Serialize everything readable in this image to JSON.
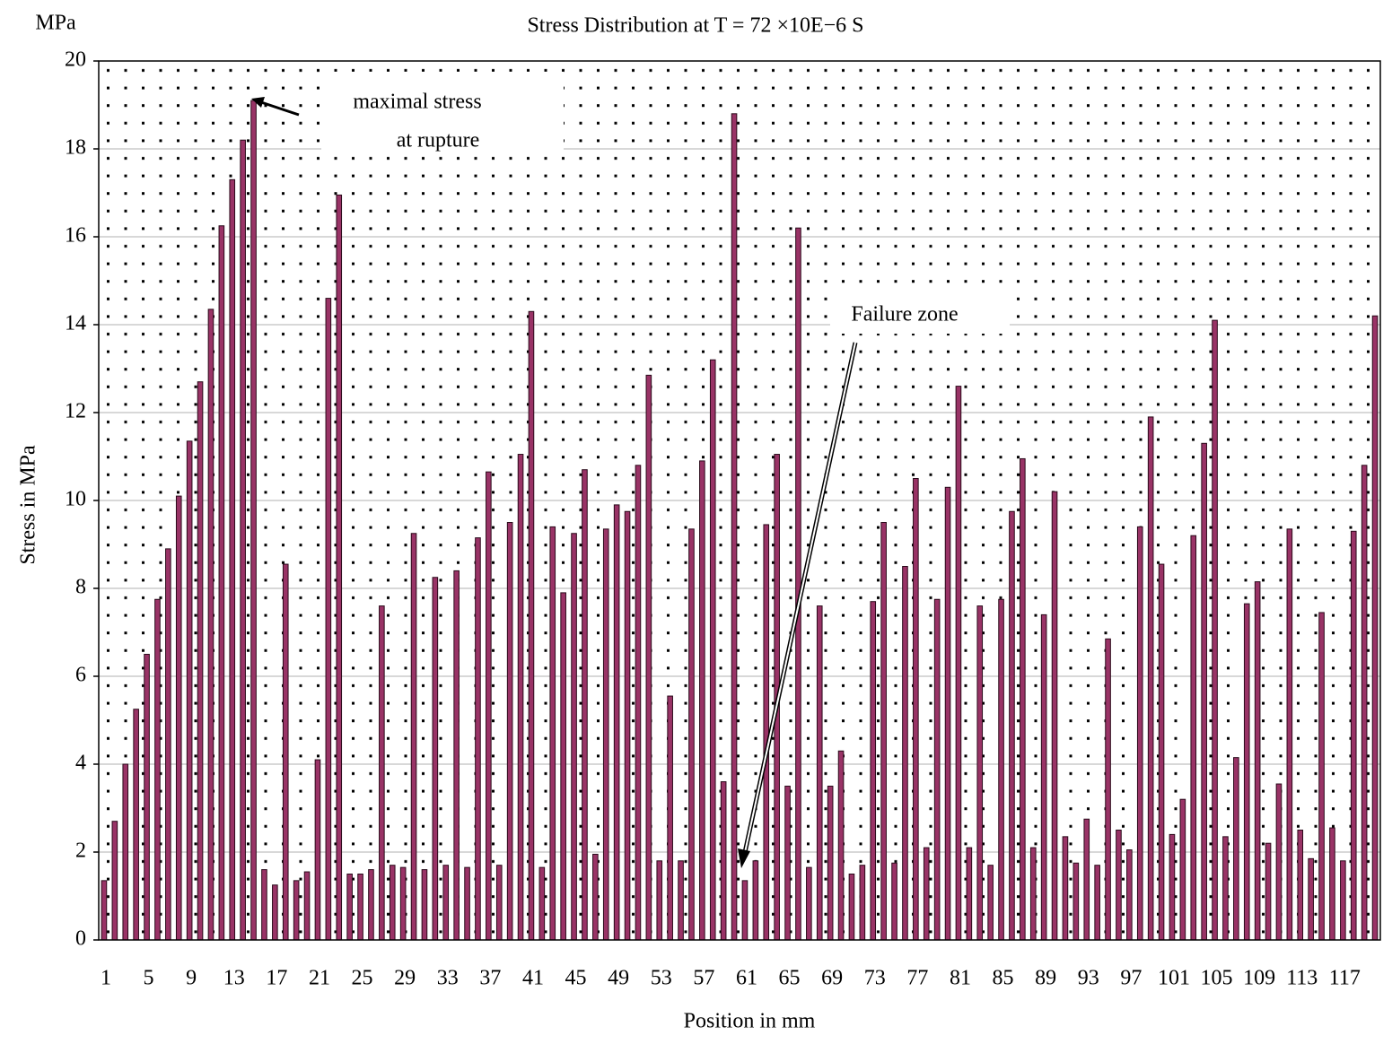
{
  "chart_data": {
    "type": "bar",
    "title": "Stress Distribution at T = 72 ×10E−6 S",
    "y_unit": "MPa",
    "xlabel": "Position in mm",
    "ylabel": "Stress in MPa",
    "annotations": [
      "maximal stress",
      "at rupture",
      "Failure zone"
    ],
    "categories": [
      "1",
      null,
      null,
      null,
      "5",
      null,
      null,
      null,
      "9",
      null,
      null,
      null,
      "13",
      null,
      null,
      null,
      "17",
      null,
      null,
      null,
      "21",
      null,
      null,
      null,
      "25",
      null,
      null,
      null,
      "29",
      null,
      null,
      null,
      "33",
      null,
      null,
      null,
      "37",
      null,
      null,
      null,
      "41",
      null,
      null,
      null,
      "45",
      null,
      null,
      null,
      "49",
      null,
      null,
      null,
      "53",
      null,
      null,
      null,
      "57",
      null,
      null,
      null,
      "61",
      null,
      null,
      null,
      "65",
      null,
      null,
      null,
      "69",
      null,
      null,
      null,
      "73",
      null,
      null,
      null,
      "77",
      null,
      null,
      null,
      "81",
      null,
      null,
      null,
      "85",
      null,
      null,
      null,
      "89",
      null,
      null,
      null,
      "93",
      null,
      null,
      null,
      "97",
      null,
      null,
      null,
      "101",
      null,
      null,
      null,
      "105",
      null,
      null,
      null,
      "109",
      null,
      null,
      null,
      "113",
      null,
      null,
      null,
      "117",
      null,
      null,
      null
    ],
    "values": [
      1.35,
      2.7,
      4.0,
      5.25,
      6.5,
      7.75,
      8.9,
      10.1,
      11.35,
      12.7,
      14.35,
      16.25,
      17.3,
      18.2,
      19.1,
      1.6,
      1.25,
      8.55,
      1.35,
      1.55,
      4.1,
      14.6,
      16.95,
      1.5,
      1.5,
      1.6,
      7.6,
      1.7,
      1.65,
      9.25,
      1.6,
      8.25,
      1.7,
      8.4,
      1.65,
      9.15,
      10.65,
      1.7,
      9.5,
      11.05,
      14.3,
      1.65,
      9.4,
      7.9,
      9.25,
      10.7,
      1.95,
      9.35,
      9.9,
      9.75,
      10.8,
      12.85,
      1.8,
      5.55,
      1.8,
      9.35,
      10.9,
      13.2,
      3.6,
      18.8,
      1.35,
      1.8,
      9.45,
      11.05,
      3.5,
      16.2,
      1.65,
      7.6,
      3.5,
      4.3,
      1.5,
      1.7,
      7.7,
      9.5,
      1.75,
      8.5,
      10.5,
      2.1,
      7.75,
      10.3,
      12.6,
      2.1,
      7.6,
      1.7,
      7.75,
      9.75,
      10.95,
      2.1,
      7.4,
      10.2,
      2.35,
      1.75,
      2.75,
      1.7,
      6.85,
      2.5,
      2.05,
      9.4,
      11.9,
      8.55,
      2.4,
      3.2,
      9.2,
      11.3,
      14.1,
      2.35,
      4.15,
      7.65,
      8.15,
      2.2,
      3.55,
      9.35,
      2.5,
      1.85,
      7.45,
      2.55,
      1.8,
      9.3,
      10.8,
      14.2
    ],
    "color": "#993366",
    "ylim": [
      0,
      20
    ],
    "yticks": [
      0,
      2,
      4,
      6,
      8,
      10,
      12,
      14,
      16,
      18,
      20
    ],
    "grid": true
  }
}
